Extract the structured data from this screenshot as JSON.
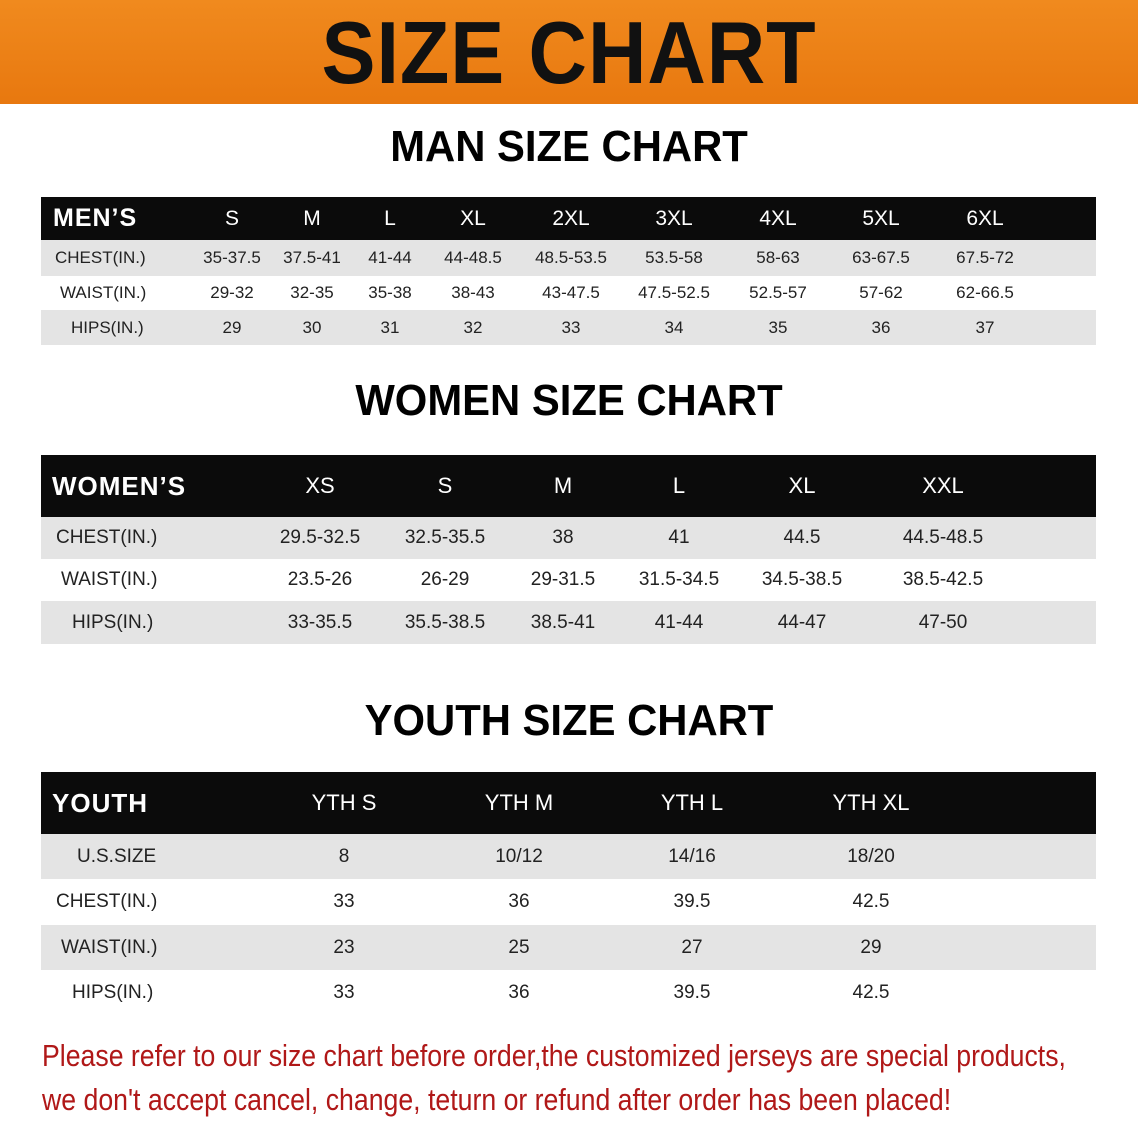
{
  "banner": {
    "title": "SIZE CHART",
    "color": "#ee831a"
  },
  "men": {
    "title": "MAN SIZE CHART",
    "header": "MEN’S",
    "sizes": [
      "S",
      "M",
      "L",
      "XL",
      "2XL",
      "3XL",
      "4XL",
      "5XL",
      "6XL"
    ],
    "rows": [
      {
        "label": "CHEST(IN.)",
        "values": [
          "35-37.5",
          "37.5-41",
          "41-44",
          "44-48.5",
          "48.5-53.5",
          "53.5-58",
          "58-63",
          "63-67.5",
          "67.5-72"
        ]
      },
      {
        "label": "WAIST(IN.)",
        "values": [
          "29-32",
          "32-35",
          "35-38",
          "38-43",
          "43-47.5",
          "47.5-52.5",
          "52.5-57",
          "57-62",
          "62-66.5"
        ]
      },
      {
        "label": "HIPS(IN.)",
        "values": [
          "29",
          "30",
          "31",
          "32",
          "33",
          "34",
          "35",
          "36",
          "37"
        ]
      }
    ]
  },
  "women": {
    "title": "WOMEN SIZE CHART",
    "header": "WOMEN’S",
    "sizes": [
      "XS",
      "S",
      "M",
      "L",
      "XL",
      "XXL"
    ],
    "rows": [
      {
        "label": "CHEST(IN.)",
        "values": [
          "29.5-32.5",
          "32.5-35.5",
          "38",
          "41",
          "44.5",
          "44.5-48.5"
        ]
      },
      {
        "label": "WAIST(IN.)",
        "values": [
          "23.5-26",
          "26-29",
          "29-31.5",
          "31.5-34.5",
          "34.5-38.5",
          "38.5-42.5"
        ]
      },
      {
        "label": "HIPS(IN.)",
        "values": [
          "33-35.5",
          "35.5-38.5",
          "38.5-41",
          "41-44",
          "44-47",
          "47-50"
        ]
      }
    ]
  },
  "youth": {
    "title": "YOUTH SIZE CHART",
    "header": "YOUTH",
    "sizes": [
      "YTH S",
      "YTH M",
      "YTH L",
      "YTH XL"
    ],
    "rows": [
      {
        "label": "U.S.SIZE",
        "values": [
          "8",
          "10/12",
          "14/16",
          "18/20"
        ]
      },
      {
        "label": "CHEST(IN.)",
        "values": [
          "33",
          "36",
          "39.5",
          "42.5"
        ]
      },
      {
        "label": "WAIST(IN.)",
        "values": [
          "23",
          "25",
          "27",
          "29"
        ]
      },
      {
        "label": "HIPS(IN.)",
        "values": [
          "33",
          "36",
          "39.5",
          "42.5"
        ]
      }
    ]
  },
  "note": {
    "line1": "Please refer to our size chart before order,the customized jerseys are special products,",
    "line2": "we don't accept cancel, change, teturn or refund after order has been placed!",
    "color": "#b01818"
  }
}
